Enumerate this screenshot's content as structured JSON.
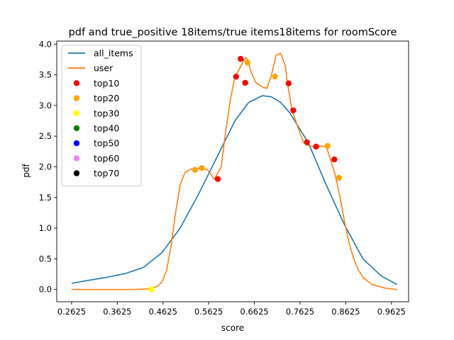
{
  "chart_data": {
    "type": "line",
    "title": "pdf and true_positive 18items/true items18items for roomScore",
    "xlabel": "score",
    "ylabel": "pdf",
    "xlim": [
      0.23,
      1.0
    ],
    "ylim": [
      -0.2,
      4.05
    ],
    "xticks": [
      "0.2625",
      "0.3625",
      "0.4625",
      "0.5625",
      "0.6625",
      "0.7625",
      "0.8625",
      "0.9625"
    ],
    "yticks": [
      "0.0",
      "0.5",
      "1.0",
      "1.5",
      "2.0",
      "2.5",
      "3.0",
      "3.5",
      "4.0"
    ],
    "grid": false,
    "legend_position": "top-left",
    "series": [
      {
        "name": "all_items",
        "kind": "line",
        "color": "#1f77b4",
        "x": [
          0.2625,
          0.3,
          0.34,
          0.38,
          0.42,
          0.46,
          0.5,
          0.54,
          0.58,
          0.62,
          0.65,
          0.68,
          0.7,
          0.72,
          0.74,
          0.78,
          0.82,
          0.86,
          0.9,
          0.94,
          0.975
        ],
        "y": [
          0.1,
          0.15,
          0.2,
          0.26,
          0.36,
          0.6,
          1.0,
          1.55,
          2.15,
          2.75,
          3.05,
          3.16,
          3.14,
          3.05,
          2.88,
          2.4,
          1.7,
          1.05,
          0.5,
          0.22,
          0.08
        ]
      },
      {
        "name": "user",
        "kind": "line",
        "color": "#ff7f0e",
        "x": [
          0.2625,
          0.3,
          0.35,
          0.4,
          0.43,
          0.45,
          0.46,
          0.47,
          0.48,
          0.49,
          0.5,
          0.51,
          0.52,
          0.53,
          0.545,
          0.56,
          0.575,
          0.59,
          0.6,
          0.61,
          0.62,
          0.63,
          0.64,
          0.645,
          0.65,
          0.655,
          0.665,
          0.68,
          0.69,
          0.7,
          0.71,
          0.72,
          0.73,
          0.735,
          0.745,
          0.76,
          0.77,
          0.78,
          0.79,
          0.8,
          0.81,
          0.82,
          0.83,
          0.84,
          0.85,
          0.86,
          0.87,
          0.88,
          0.89,
          0.9,
          0.92,
          0.95,
          0.975
        ],
        "y": [
          0.0,
          0.0,
          0.0,
          0.0,
          0.01,
          0.05,
          0.12,
          0.3,
          0.7,
          1.25,
          1.7,
          1.9,
          1.95,
          1.97,
          1.98,
          1.95,
          1.8,
          2.0,
          2.6,
          3.1,
          3.47,
          3.6,
          3.75,
          3.78,
          3.7,
          3.55,
          3.38,
          3.3,
          3.28,
          3.5,
          3.82,
          3.85,
          3.65,
          3.36,
          2.92,
          2.6,
          2.4,
          2.35,
          2.33,
          2.33,
          2.34,
          2.32,
          2.1,
          1.85,
          1.5,
          1.1,
          0.75,
          0.5,
          0.32,
          0.2,
          0.08,
          0.02,
          0.0
        ]
      },
      {
        "name": "top10",
        "kind": "scatter",
        "color": "#ff0000",
        "x": [
          0.5825,
          0.6225,
          0.6325,
          0.6425,
          0.7375,
          0.7475,
          0.7775,
          0.7975,
          0.8375
        ],
        "y": [
          1.8,
          3.47,
          3.76,
          3.37,
          3.36,
          2.92,
          2.4,
          2.33,
          2.12
        ]
      },
      {
        "name": "top20",
        "kind": "scatter",
        "color": "#ffa500",
        "x": [
          0.5325,
          0.5475,
          0.6475,
          0.7075,
          0.8225,
          0.8475
        ],
        "y": [
          1.95,
          1.98,
          3.7,
          3.47,
          2.34,
          1.82
        ]
      },
      {
        "name": "top30",
        "kind": "scatter",
        "color": "#ffff00",
        "x": [
          0.4375
        ],
        "y": [
          0.0
        ]
      },
      {
        "name": "top40",
        "kind": "scatter",
        "color": "#008000",
        "x": [],
        "y": []
      },
      {
        "name": "top50",
        "kind": "scatter",
        "color": "#0000ff",
        "x": [],
        "y": []
      },
      {
        "name": "top60",
        "kind": "scatter",
        "color": "#ee82ee",
        "x": [],
        "y": []
      },
      {
        "name": "top70",
        "kind": "scatter",
        "color": "#000000",
        "x": [],
        "y": []
      }
    ]
  }
}
